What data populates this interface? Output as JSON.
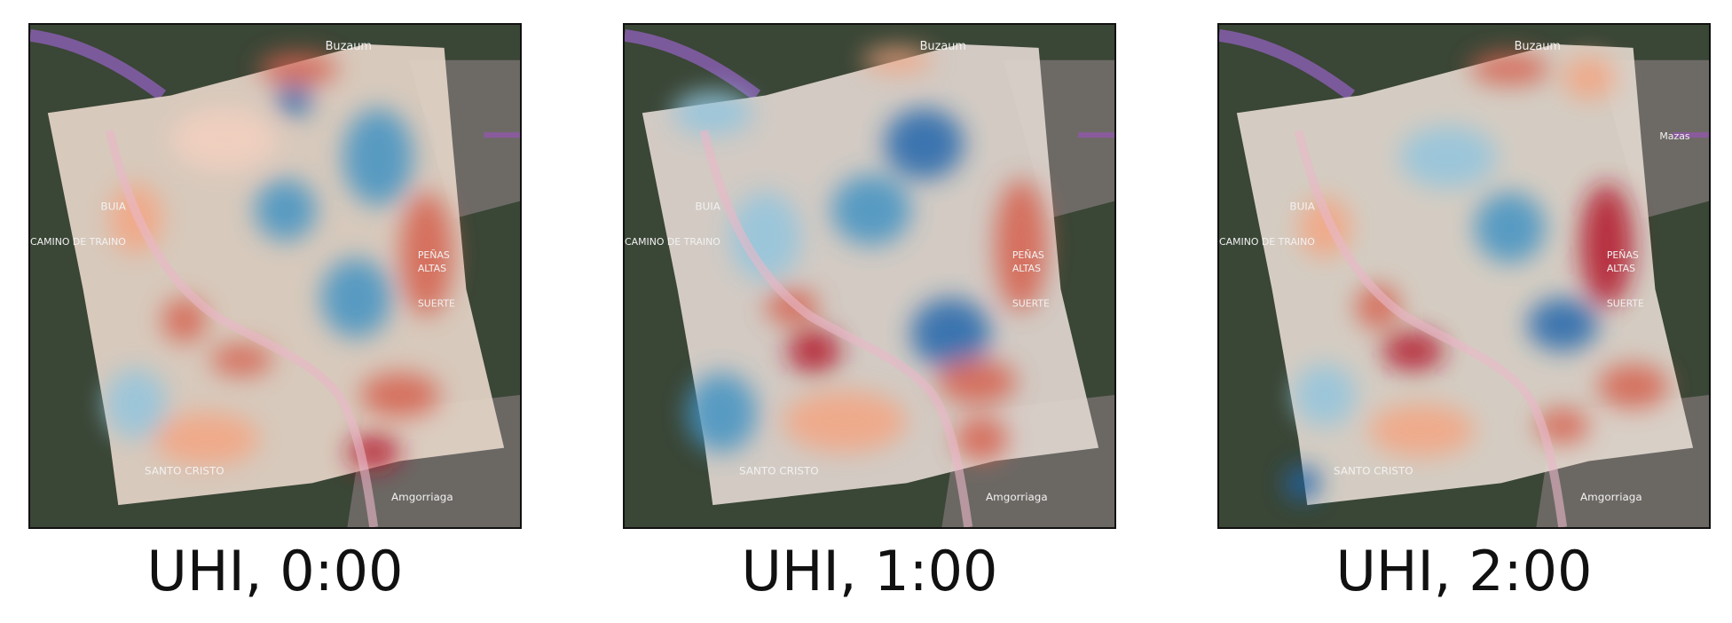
{
  "figure": {
    "panels": [
      {
        "caption": "UHI, 0:00"
      },
      {
        "caption": "UHI, 1:00"
      },
      {
        "caption": "UHI, 2:00"
      }
    ],
    "map_labels": {
      "top": "Buzaum",
      "left_town": "BUIA",
      "road": "CAMINO DE TRAINO",
      "right_a": "PEÑAS",
      "right_b": "ALTAS",
      "right_c": "SUERTE",
      "bottom_left": "SANTO CRISTO",
      "bottom_right": "Amgorriaga",
      "top_right": "Mazas"
    },
    "colors": {
      "warm": "#d6604d",
      "hot": "#b2182b",
      "cool": "#4393c3",
      "cold": "#2166ac",
      "neutral": "#e8dccd"
    }
  }
}
